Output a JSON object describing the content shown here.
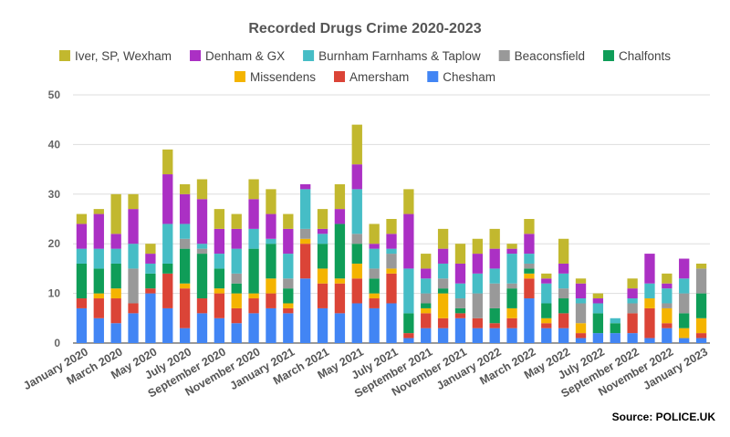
{
  "chart_data": {
    "type": "bar",
    "stacked": true,
    "title": "Recorded Drugs Crime 2020-2023",
    "source": "Source: POLICE.UK",
    "ylim": [
      0,
      50
    ],
    "yticks": [
      0,
      10,
      20,
      30,
      40,
      50
    ],
    "grid": true,
    "legend_position": "top",
    "categories": [
      "January 2020",
      "February 2020",
      "March 2020",
      "April 2020",
      "May 2020",
      "June 2020",
      "July 2020",
      "August 2020",
      "September 2020",
      "October 2020",
      "November 2020",
      "December 2020",
      "January 2021",
      "February 2021",
      "March 2021",
      "April 2021",
      "May 2021",
      "June 2021",
      "July 2021",
      "August 2021",
      "September 2021",
      "October 2021",
      "November 2021",
      "December 2021",
      "January 2022",
      "February 2022",
      "March 2022",
      "April 2022",
      "May 2022",
      "June 2022",
      "July 2022",
      "August 2022",
      "September 2022",
      "October 2022",
      "November 2022",
      "December 2022",
      "January 2023"
    ],
    "x_tick_labels": [
      "January 2020",
      "March 2020",
      "May 2020",
      "July 2020",
      "September 2020",
      "November 2020",
      "January 2021",
      "March 2021",
      "May 2021",
      "July 2021",
      "September 2021",
      "November 2021",
      "January 2022",
      "March 2022",
      "May 2022",
      "July 2022",
      "September 2022",
      "November 2022",
      "January 2023"
    ],
    "series": [
      {
        "name": "Chesham",
        "color": "#4285f4",
        "values": [
          7,
          5,
          4,
          6,
          10,
          7,
          3,
          6,
          5,
          4,
          6,
          7,
          6,
          13,
          7,
          6,
          8,
          7,
          8,
          1,
          3,
          3,
          5,
          3,
          3,
          3,
          9,
          3,
          3,
          1,
          2,
          2,
          2,
          1,
          3,
          1,
          1
        ]
      },
      {
        "name": "Amersham",
        "color": "#db4437",
        "values": [
          2,
          4,
          5,
          2,
          1,
          7,
          8,
          3,
          5,
          3,
          3,
          3,
          1,
          7,
          5,
          6,
          5,
          2,
          6,
          1,
          3,
          2,
          1,
          2,
          1,
          2,
          4,
          1,
          3,
          1,
          0,
          0,
          4,
          6,
          1,
          0,
          1
        ]
      },
      {
        "name": "Missendens",
        "color": "#f4b400",
        "values": [
          0,
          1,
          2,
          0,
          0,
          0,
          1,
          0,
          1,
          3,
          1,
          3,
          1,
          1,
          3,
          1,
          3,
          1,
          1,
          0,
          1,
          5,
          0,
          0,
          0,
          2,
          1,
          1,
          0,
          2,
          0,
          0,
          0,
          2,
          3,
          2,
          3
        ]
      },
      {
        "name": "Chalfonts",
        "color": "#0f9d58",
        "values": [
          7,
          5,
          5,
          0,
          3,
          2,
          7,
          9,
          4,
          2,
          9,
          7,
          3,
          0,
          5,
          11,
          4,
          3,
          0,
          4,
          1,
          1,
          1,
          0,
          3,
          4,
          1,
          3,
          3,
          0,
          4,
          2,
          0,
          0,
          0,
          3,
          5
        ]
      },
      {
        "name": "Beaconsfield",
        "color": "#999999",
        "values": [
          0,
          0,
          0,
          7,
          0,
          0,
          2,
          1,
          0,
          2,
          0,
          0,
          2,
          2,
          0,
          0,
          2,
          2,
          3,
          0,
          2,
          2,
          2,
          5,
          5,
          1,
          1,
          0,
          2,
          4,
          0,
          0,
          2,
          0,
          1,
          4,
          5
        ]
      },
      {
        "name": "Burnham Farnhams & Taplow",
        "color": "#46bdc6",
        "values": [
          3,
          4,
          3,
          5,
          2,
          8,
          3,
          1,
          3,
          5,
          4,
          1,
          5,
          8,
          2,
          0,
          9,
          4,
          1,
          9,
          3,
          3,
          3,
          4,
          3,
          6,
          2,
          4,
          3,
          1,
          2,
          1,
          1,
          3,
          3,
          3,
          0
        ]
      },
      {
        "name": "Denham & GX",
        "color": "#ab30c4",
        "values": [
          5,
          7,
          3,
          7,
          2,
          10,
          6,
          9,
          5,
          4,
          6,
          5,
          5,
          1,
          1,
          3,
          5,
          1,
          3,
          11,
          2,
          3,
          4,
          4,
          4,
          1,
          4,
          1,
          2,
          3,
          1,
          0,
          2,
          6,
          1,
          4,
          0
        ]
      },
      {
        "name": "Iver, SP, Wexham",
        "color": "#c2b82e",
        "values": [
          2,
          1,
          8,
          3,
          2,
          5,
          2,
          4,
          4,
          3,
          4,
          5,
          3,
          0,
          4,
          5,
          8,
          4,
          3,
          5,
          3,
          4,
          4,
          3,
          4,
          1,
          3,
          1,
          5,
          1,
          1,
          0,
          2,
          0,
          2,
          0,
          1
        ]
      }
    ]
  }
}
